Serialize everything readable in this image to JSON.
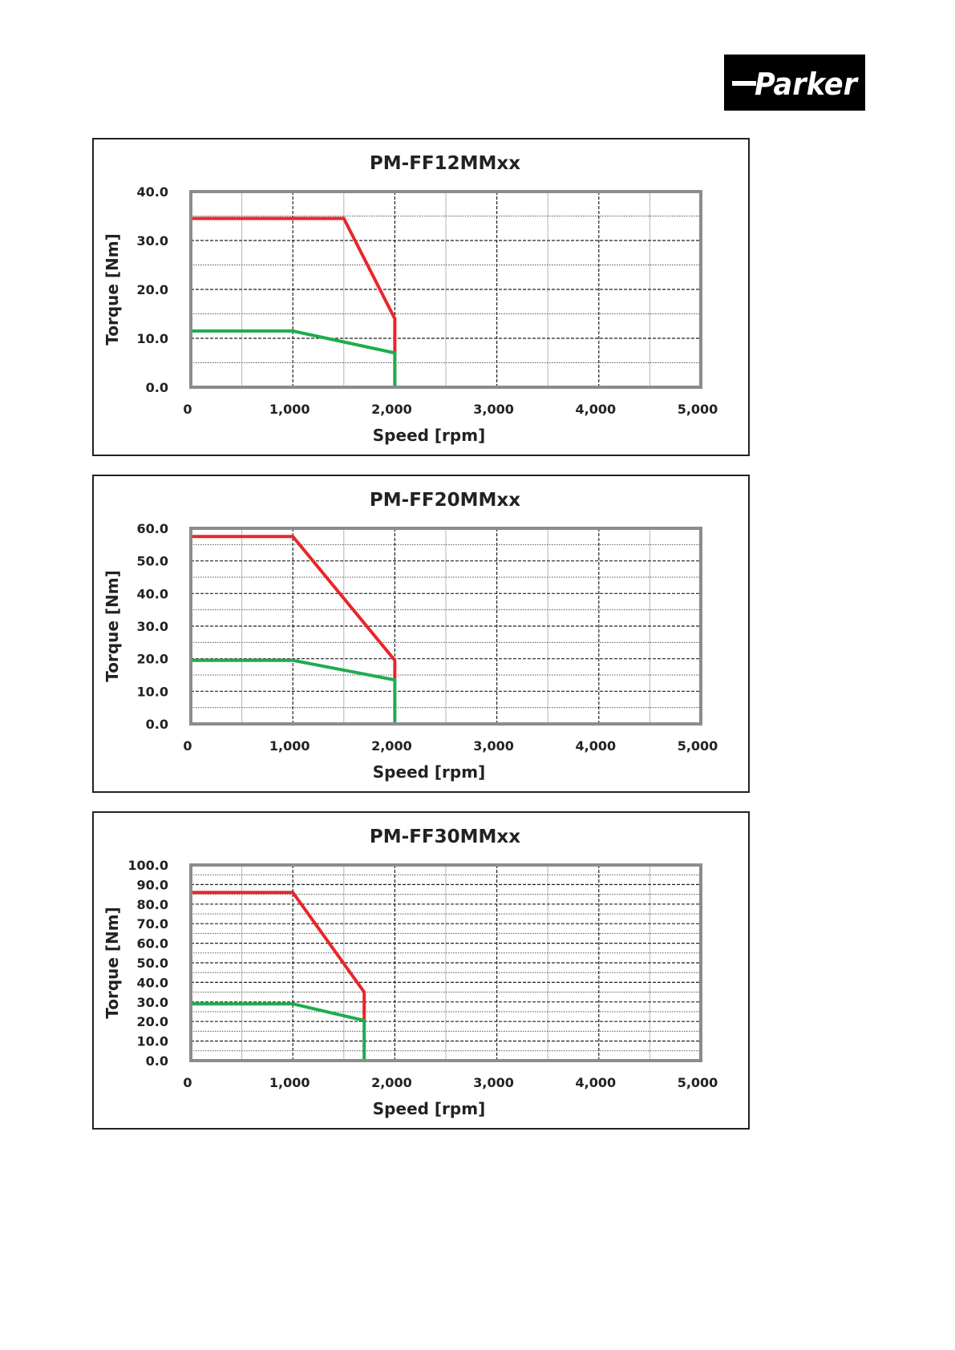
{
  "logo": {
    "text": "Parker"
  },
  "chart_data": [
    {
      "type": "line",
      "title": "PM-FF12MMxx",
      "xlabel": "Speed [rpm]",
      "ylabel": "Torque [Nm]",
      "xlim": [
        0,
        5000
      ],
      "ylim": [
        0,
        40
      ],
      "x_ticks": [
        "0",
        "1,000",
        "2,000",
        "3,000",
        "4,000",
        "5,000"
      ],
      "y_ticks": [
        "0.0",
        "10.0",
        "20.0",
        "30.0",
        "40.0"
      ],
      "y_tick_values": [
        0,
        10,
        20,
        30,
        40
      ],
      "y_minor_step": 5,
      "x_minor_step": 500,
      "grid": true,
      "series": [
        {
          "color": "#e8262a",
          "x": [
            0,
            1500,
            2000,
            2000
          ],
          "y": [
            34.5,
            34.5,
            14.0,
            0
          ]
        },
        {
          "color": "#1fac4f",
          "x": [
            0,
            1000,
            2000,
            2000
          ],
          "y": [
            11.5,
            11.5,
            7.0,
            0
          ]
        }
      ]
    },
    {
      "type": "line",
      "title": "PM-FF20MMxx",
      "xlabel": "Speed [rpm]",
      "ylabel": "Torque [Nm]",
      "xlim": [
        0,
        5000
      ],
      "ylim": [
        0,
        60
      ],
      "x_ticks": [
        "0",
        "1,000",
        "2,000",
        "3,000",
        "4,000",
        "5,000"
      ],
      "y_ticks": [
        "0.0",
        "10.0",
        "20.0",
        "30.0",
        "40.0",
        "50.0",
        "60.0"
      ],
      "y_tick_values": [
        0,
        10,
        20,
        30,
        40,
        50,
        60
      ],
      "y_minor_step": 5,
      "x_minor_step": 500,
      "grid": true,
      "series": [
        {
          "color": "#e8262a",
          "x": [
            0,
            1000,
            2000,
            2000
          ],
          "y": [
            57.5,
            57.5,
            19.5,
            14.0
          ]
        },
        {
          "color": "#1fac4f",
          "x": [
            0,
            1000,
            2000,
            2000
          ],
          "y": [
            19.5,
            19.5,
            13.5,
            0
          ]
        }
      ]
    },
    {
      "type": "line",
      "title": "PM-FF30MMxx",
      "xlabel": "Speed [rpm]",
      "ylabel": "Torque [Nm]",
      "xlim": [
        0,
        5000
      ],
      "ylim": [
        0,
        100
      ],
      "x_ticks": [
        "0",
        "1,000",
        "2,000",
        "3,000",
        "4,000",
        "5,000"
      ],
      "y_ticks": [
        "0.0",
        "10.0",
        "20.0",
        "30.0",
        "40.0",
        "50.0",
        "60.0",
        "70.0",
        "80.0",
        "90.0",
        "100.0"
      ],
      "y_tick_values": [
        0,
        10,
        20,
        30,
        40,
        50,
        60,
        70,
        80,
        90,
        100
      ],
      "y_minor_step": 5,
      "x_minor_step": 500,
      "grid": true,
      "series": [
        {
          "color": "#e8262a",
          "x": [
            0,
            1000,
            1700,
            1700
          ],
          "y": [
            86.0,
            86.0,
            35.0,
            20.0
          ]
        },
        {
          "color": "#1fac4f",
          "x": [
            0,
            1000,
            1700,
            1700
          ],
          "y": [
            29.0,
            29.0,
            20.5,
            0
          ]
        }
      ]
    }
  ]
}
